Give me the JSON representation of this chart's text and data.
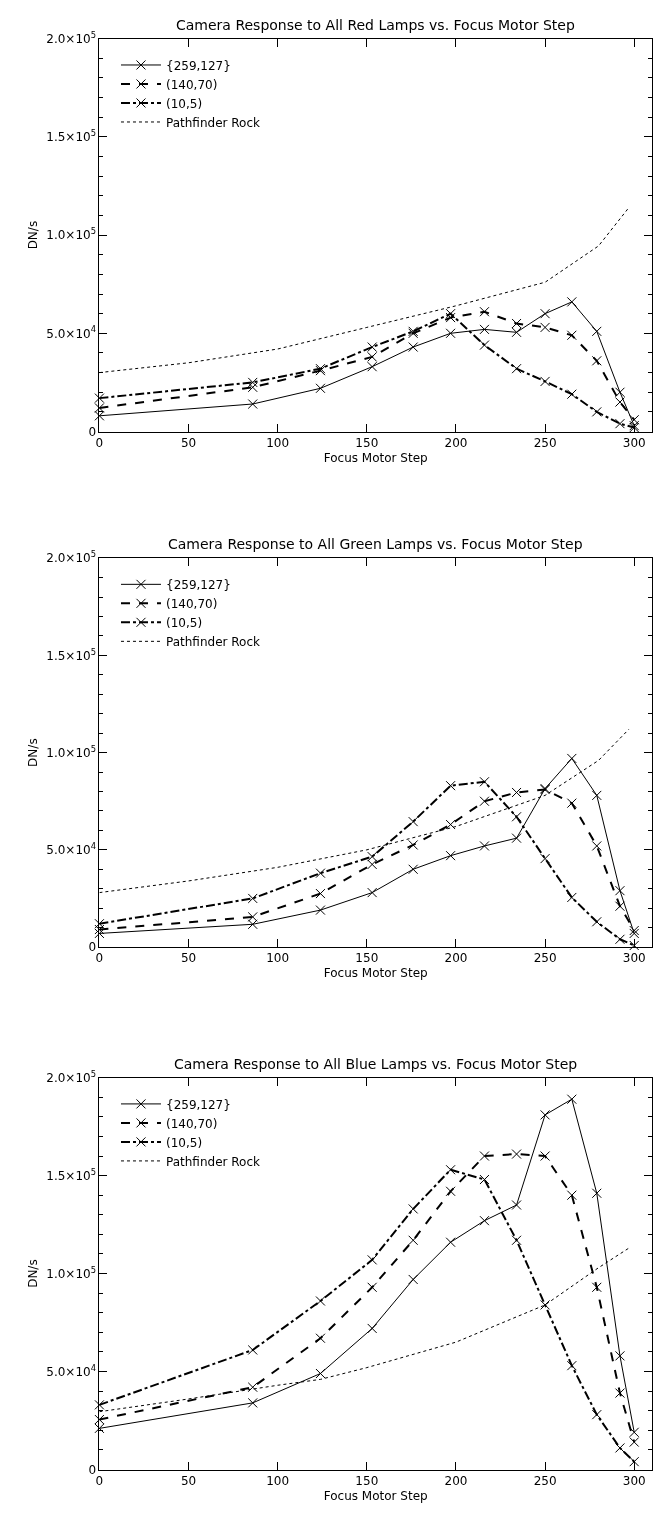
{
  "chart_data": [
    {
      "type": "line",
      "title": "Camera Response to All Red Lamps vs. Focus Motor Step",
      "xlabel": "Focus Motor Step",
      "ylabel": "DN/s",
      "x": [
        0,
        86,
        124,
        153,
        176,
        197,
        216,
        234,
        250,
        265,
        279,
        292,
        300
      ],
      "xlim": [
        0,
        310
      ],
      "xticks": [
        0,
        50,
        100,
        150,
        200,
        250,
        300
      ],
      "ylim": [
        0,
        200000
      ],
      "yticks": [
        0,
        {
          "value": 50000,
          "label": "5.0×10$^{4}$"
        },
        {
          "value": 100000,
          "label": "1.0×10$^{5}$"
        },
        {
          "value": 150000,
          "label": "1.5×10$^{5}$"
        },
        {
          "value": 200000,
          "label": "2.0×10$^{5}$"
        }
      ],
      "legend": "top left",
      "marker": "cross",
      "series": [
        {
          "name": "{259,127}",
          "color": "#000000",
          "line_style": "solid",
          "values": [
            8000,
            14000,
            22000,
            33000,
            43000,
            50000,
            52000,
            50500,
            60000,
            66000,
            51000,
            20000,
            3000
          ]
        },
        {
          "name": "(140,70)",
          "color": "#000000",
          "line_style": "dashed",
          "values": [
            12000,
            22500,
            31000,
            38000,
            50000,
            58000,
            61000,
            55000,
            53000,
            49000,
            36000,
            15000,
            6000
          ]
        },
        {
          "name": "(10,5)",
          "color": "#000000",
          "line_style": "dashdot",
          "values": [
            17000,
            25000,
            32000,
            43000,
            51000,
            60000,
            44000,
            32000,
            25500,
            19000,
            10000,
            4000,
            2000
          ]
        },
        {
          "name": "Pathfinder Rock",
          "color": "#000000",
          "line_style": "dotted",
          "marker": "none",
          "x": [
            0,
            50,
            100,
            150,
            200,
            250,
            280,
            297
          ],
          "values": [
            30000,
            35000,
            42000,
            53000,
            64000,
            76000,
            94500,
            114000
          ]
        }
      ]
    },
    {
      "type": "line",
      "title": "Camera Response to All Green Lamps vs. Focus Motor Step",
      "xlabel": "Focus Motor Step",
      "ylabel": "DN/s",
      "x": [
        0,
        86,
        124,
        153,
        176,
        197,
        216,
        234,
        250,
        265,
        279,
        292,
        300
      ],
      "xlim": [
        0,
        310
      ],
      "xticks": [
        0,
        50,
        100,
        150,
        200,
        250,
        300
      ],
      "ylim": [
        0,
        200000
      ],
      "yticks": [
        0,
        {
          "value": 50000,
          "label": "5.0×10$^{4}$"
        },
        {
          "value": 100000,
          "label": "1.0×10$^{5}$"
        },
        {
          "value": 150000,
          "label": "1.5×10$^{5}$"
        },
        {
          "value": 200000,
          "label": "2.0×10$^{5}$"
        }
      ],
      "legend": "top left",
      "marker": "cross",
      "series": [
        {
          "name": "{259,127}",
          "color": "#000000",
          "line_style": "solid",
          "values": [
            7000,
            11700,
            19000,
            28000,
            40000,
            47000,
            52000,
            56000,
            81500,
            97000,
            78000,
            29000,
            7000
          ]
        },
        {
          "name": "(140,70)",
          "color": "#000000",
          "line_style": "dashed",
          "values": [
            9000,
            15500,
            27500,
            42500,
            52500,
            63000,
            75000,
            79500,
            81000,
            74000,
            52000,
            21000,
            8500
          ]
        },
        {
          "name": "(10,5)",
          "color": "#000000",
          "line_style": "dashdot",
          "values": [
            12000,
            25000,
            38000,
            46500,
            64500,
            83000,
            85000,
            67000,
            45500,
            25500,
            13000,
            4000,
            800
          ]
        },
        {
          "name": "Pathfinder Rock",
          "color": "#000000",
          "line_style": "dotted",
          "marker": "none",
          "x": [
            0,
            50,
            100,
            150,
            200,
            250,
            280,
            297
          ],
          "values": [
            28000,
            34000,
            41000,
            50000,
            62000,
            78000,
            96000,
            112000
          ]
        }
      ]
    },
    {
      "type": "line",
      "title": "Camera Response to All Blue Lamps vs. Focus Motor Step",
      "xlabel": "Focus Motor Step",
      "ylabel": "DN/s",
      "x": [
        0,
        86,
        124,
        153,
        176,
        197,
        216,
        234,
        250,
        265,
        279,
        292,
        300
      ],
      "xlim": [
        0,
        310
      ],
      "xticks": [
        0,
        50,
        100,
        150,
        200,
        250,
        300
      ],
      "ylim": [
        0,
        200000
      ],
      "yticks": [
        0,
        {
          "value": 50000,
          "label": "5.0×10$^{4}$"
        },
        {
          "value": 100000,
          "label": "1.0×10$^{5}$"
        },
        {
          "value": 150000,
          "label": "1.5×10$^{5}$"
        },
        {
          "value": 200000,
          "label": "2.0×10$^{5}$"
        }
      ],
      "legend": "top left",
      "marker": "cross",
      "series": [
        {
          "name": "{259,127}",
          "color": "#000000",
          "line_style": "solid",
          "values": [
            21000,
            34000,
            49000,
            72000,
            97000,
            116000,
            127000,
            135000,
            181000,
            189000,
            141000,
            58000,
            19000
          ]
        },
        {
          "name": "(140,70)",
          "color": "#000000",
          "line_style": "dashed",
          "values": [
            25500,
            42000,
            67000,
            93000,
            117000,
            142000,
            160000,
            161000,
            160000,
            140000,
            93000,
            39000,
            14000
          ]
        },
        {
          "name": "(10,5)",
          "color": "#000000",
          "line_style": "dashdot",
          "values": [
            33000,
            61000,
            86000,
            107000,
            133000,
            153000,
            148000,
            117000,
            84000,
            53000,
            28000,
            11000,
            4000
          ]
        },
        {
          "name": "Pathfinder Rock",
          "color": "#000000",
          "line_style": "dotted",
          "marker": "none",
          "x": [
            0,
            50,
            100,
            124,
            150,
            200,
            250,
            280,
            297
          ],
          "values": [
            29500,
            36000,
            43000,
            46000,
            52000,
            65000,
            84000,
            103000,
            113000
          ]
        }
      ]
    }
  ]
}
